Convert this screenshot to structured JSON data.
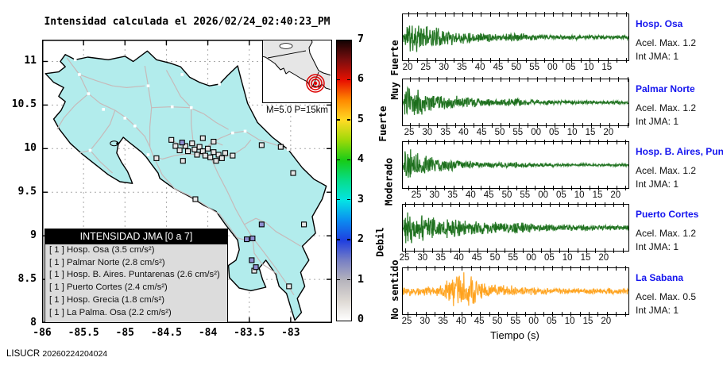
{
  "header": {
    "title": "Intensidad calculada el 2026/02/24_02:40:23_PM"
  },
  "footer": {
    "brand": "LISUCR",
    "stamp": "20260224204024"
  },
  "colors": {
    "land": "#b2ecec",
    "sea": "#ffffff",
    "coast": "#000000",
    "road": "#c6baba",
    "station_zero": "#e6e6e6",
    "station_felt": "#8f8fd2",
    "town": "#ffffff",
    "trace_green": "#1c6e1c",
    "trace_green_light": "#77b077",
    "trace_orange": "#ffa11c",
    "trace_orange_light": "#ffd083",
    "station_label_blue": "#1414ee",
    "epicenter_red": "#dd0000",
    "grid": "#aaaaaa",
    "legend_bg": "#dcdcdc"
  },
  "map_panel": {
    "x_tick_labels": [
      "-86",
      "-85.5",
      "-85",
      "-84.5",
      "-84",
      "-83.5",
      "-83"
    ],
    "y_tick_labels": [
      "11",
      "10.5",
      "10",
      "9.5",
      "9",
      "8.5",
      "8"
    ],
    "inset_caption": "M=5.0 P=15km",
    "legend_title": "INTENSIDAD JMA [0 a 7]",
    "colorbar_numbers": [
      "0",
      "1",
      "2",
      "3",
      "4",
      "5",
      "6",
      "7"
    ],
    "colorbar_labels": [
      {
        "text": "No sentido",
        "value": 0.75
      },
      {
        "text": "Debil",
        "value": 1.95
      },
      {
        "text": "Moderado",
        "value": 3.45
      },
      {
        "text": "Fuerte",
        "value": 4.9
      },
      {
        "text": "Muy Fuerte",
        "value": 6.25
      }
    ]
  },
  "waveform_panel": {
    "xlabel": "Tiempo (s)"
  },
  "chart_data": [
    {
      "type": "map",
      "title": "Intensidad calculada el 2026/02/24_02:40:23_PM",
      "x_range": [
        -86.0,
        -82.5
      ],
      "y_range": [
        8.0,
        11.25
      ],
      "x_ticks": [
        -86,
        -85.5,
        -85,
        -84.5,
        -84,
        -83.5,
        -83
      ],
      "y_ticks": [
        8,
        8.5,
        9,
        9.5,
        10,
        10.5,
        11
      ],
      "grid": "on",
      "colorbar": {
        "range": [
          0,
          7
        ],
        "ticks": [
          0,
          1,
          2,
          3,
          4,
          5,
          6,
          7
        ],
        "category_labels": [
          "No sentido",
          "Debil",
          "Moderado",
          "Fuerte",
          "Muy Fuerte"
        ]
      },
      "event": {
        "magnitude_label": "M=5.0",
        "depth_label": "P=15km"
      },
      "legend_title": "INTENSIDAD JMA [0 a 7]",
      "stations_felt": [
        {
          "intensity": 1,
          "name": "Hosp. Osa",
          "pga": "3.5",
          "lon": -83.47,
          "lat": 8.72
        },
        {
          "intensity": 1,
          "name": "Palmar Norte",
          "pga": "2.8",
          "lon": -83.46,
          "lat": 8.97
        },
        {
          "intensity": 1,
          "name": "Hosp. B. Aires. Puntarenas",
          "pga": "2.6",
          "lon": -83.35,
          "lat": 9.13
        },
        {
          "intensity": 1,
          "name": "Puerto Cortes",
          "pga": "2.4",
          "lon": -83.53,
          "lat": 8.96
        },
        {
          "intensity": 1,
          "name": "Hosp. Grecia",
          "pga": "1.8",
          "lon": -84.31,
          "lat": 10.07
        },
        {
          "intensity": 1,
          "name": "La Palma. Osa",
          "pga": "2.2",
          "lon": -83.42,
          "lat": 8.64
        }
      ],
      "stations_zero": [
        [
          -84.44,
          10.1
        ],
        [
          -84.39,
          10.03
        ],
        [
          -84.34,
          9.98
        ],
        [
          -84.27,
          10.03
        ],
        [
          -84.24,
          9.97
        ],
        [
          -84.19,
          10.06
        ],
        [
          -84.16,
          9.99
        ],
        [
          -84.13,
          9.93
        ],
        [
          -84.1,
          10.02
        ],
        [
          -84.06,
          9.97
        ],
        [
          -84.03,
          9.92
        ],
        [
          -84.0,
          10.0
        ],
        [
          -83.97,
          9.9
        ],
        [
          -83.93,
          9.96
        ],
        [
          -83.9,
          9.86
        ],
        [
          -83.87,
          9.93
        ],
        [
          -83.83,
          9.89
        ],
        [
          -83.79,
          9.95
        ],
        [
          -83.93,
          10.08
        ],
        [
          -84.06,
          10.12
        ],
        [
          -84.3,
          9.86
        ],
        [
          -84.15,
          9.42
        ],
        [
          -83.7,
          9.92
        ],
        [
          -83.35,
          10.04
        ],
        [
          -83.12,
          10.02
        ],
        [
          -82.97,
          9.72
        ],
        [
          -82.84,
          9.13
        ],
        [
          -83.44,
          8.6
        ],
        [
          -83.02,
          8.42
        ],
        [
          -84.62,
          9.89
        ]
      ]
    },
    {
      "type": "line",
      "xlabel": "Tiempo (s)",
      "panels": [
        {
          "station": "Hosp. Osa",
          "accel_label": "Acel. Max. 1.2",
          "int_label": "Int JMA: 1",
          "tick_labels": [
            "20",
            "25",
            "30",
            "35",
            "40",
            "45",
            "50",
            "55",
            "00",
            "05",
            "10",
            "15"
          ],
          "tick_offset": 7,
          "trace": "green",
          "envelope": "decay",
          "decay": 5.0,
          "base": 0.1,
          "seed": 11
        },
        {
          "station": "Palmar Norte",
          "accel_label": "Acel. Max. 1.2",
          "int_label": "Int JMA: 1",
          "tick_labels": [
            "25",
            "30",
            "35",
            "40",
            "45",
            "50",
            "55",
            "00",
            "05",
            "10",
            "15",
            "20"
          ],
          "tick_offset": 9,
          "trace": "green",
          "envelope": "decay",
          "decay": 5.5,
          "base": 0.09,
          "seed": 23
        },
        {
          "station": "Hosp. B. Aires, Puntare",
          "accel_label": "Acel. Max. 1.2",
          "int_label": "Int JMA: 1",
          "tick_labels": [
            "25",
            "30",
            "35",
            "40",
            "45",
            "50",
            "55",
            "00",
            "05",
            "10",
            "15",
            "20"
          ],
          "tick_offset": 18,
          "trace": "green",
          "envelope": "decay",
          "decay": 6.2,
          "base": 0.07,
          "seed": 37
        },
        {
          "station": "Puerto Cortes",
          "accel_label": "Acel. Max. 1.2",
          "int_label": "Int JMA: 1",
          "tick_labels": [
            "25",
            "30",
            "35",
            "40",
            "45",
            "50",
            "55",
            "00",
            "05",
            "10",
            "15",
            "20"
          ],
          "tick_offset": 3,
          "trace": "green",
          "envelope": "decay",
          "decay": 4.2,
          "base": 0.13,
          "seed": 51
        },
        {
          "station": "La Sabana",
          "accel_label": "Acel. Max. 0.5",
          "int_label": "Int JMA: 1",
          "tick_labels": [
            "25",
            "30",
            "35",
            "40",
            "45",
            "50",
            "55",
            "00",
            "05",
            "10",
            "15",
            "20"
          ],
          "tick_offset": 6,
          "trace": "orange",
          "envelope": "burst",
          "decay": 3.0,
          "base": 0.16,
          "seed": 77
        }
      ]
    }
  ]
}
